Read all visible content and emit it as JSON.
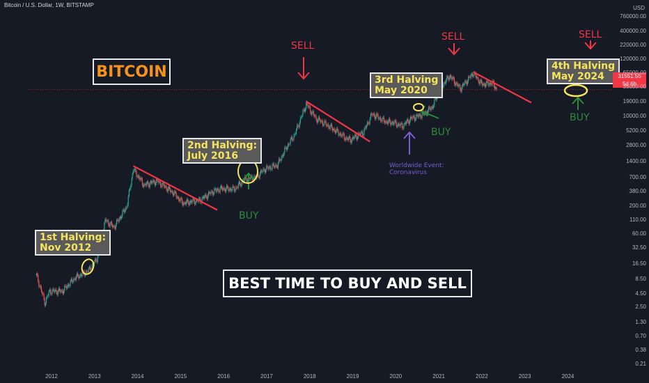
{
  "header": {
    "title": "Bitcoin / U.S. Dollar, 1W, BITSTAMP"
  },
  "y_axis": {
    "currency": "USD",
    "ticks": [
      "760000.00",
      "400000.00",
      "220000.00",
      "120000.00",
      "65000.00",
      "35000.00",
      "19000.00",
      "10000.00",
      "5200.00",
      "2800.00",
      "1400.00",
      "700.00",
      "380.00",
      "200.00",
      "110.00",
      "60.00",
      "32.50",
      "16.50",
      "8.50",
      "4.50",
      "2.50",
      "1.30",
      "0.70",
      "0.38",
      "0.21"
    ],
    "current_price": "31551.55",
    "countdown": "5d 6h"
  },
  "x_axis": {
    "ticks": [
      "2012",
      "2013",
      "2014",
      "2015",
      "2016",
      "2017",
      "2018",
      "2019",
      "2020",
      "2021",
      "2022",
      "2023",
      "2024"
    ]
  },
  "annotations": {
    "bitcoin_label": "BITCOIN",
    "best_time": "BEST TIME TO BUY AND SELL",
    "halving1": [
      "1st Halving:",
      "Nov 2012"
    ],
    "halving2": [
      "2nd Halving:",
      "July 2016"
    ],
    "halving3": [
      "3rd Halving",
      "May 2020"
    ],
    "halving4": [
      "4th Halving",
      "May 2024"
    ],
    "sell": "SELL",
    "buy": "BUY",
    "event": [
      "Worldwide Event:",
      "Coronavirus"
    ]
  },
  "colors": {
    "background": "#161a25",
    "up": "#26a69a",
    "down": "#ef5350",
    "sell": "#f23645",
    "buy": "#2e8b3a",
    "halving_text": "#f6e45c",
    "bitcoin": "#f7931a",
    "event": "#7b5cd6"
  },
  "chart_data": {
    "type": "line",
    "title": "Bitcoin / U.S. Dollar, 1W, BITSTAMP",
    "y_scale": "log",
    "ylim": [
      0.18,
      900000
    ],
    "x_range": [
      2011.5,
      2024.9
    ],
    "series": [
      {
        "name": "BTCUSD",
        "x": [
          2011.7,
          2011.9,
          2012.0,
          2012.3,
          2012.6,
          2012.9,
          2013.1,
          2013.3,
          2013.5,
          2013.8,
          2013.95,
          2014.2,
          2014.5,
          2014.9,
          2015.1,
          2015.5,
          2015.8,
          2016.0,
          2016.3,
          2016.55,
          2016.8,
          2017.0,
          2017.3,
          2017.5,
          2017.7,
          2017.97,
          2018.2,
          2018.5,
          2018.9,
          2019.0,
          2019.3,
          2019.5,
          2019.8,
          2020.0,
          2020.2,
          2020.4,
          2020.7,
          2020.9,
          2021.1,
          2021.3,
          2021.55,
          2021.85,
          2022.05,
          2022.3,
          2022.4
        ],
        "y": [
          10,
          3,
          5,
          5,
          9,
          12,
          20,
          110,
          80,
          200,
          1000,
          500,
          600,
          350,
          230,
          260,
          380,
          430,
          420,
          650,
          700,
          1000,
          1200,
          2500,
          4500,
          17000,
          9000,
          6500,
          3800,
          3600,
          5000,
          11000,
          8000,
          7500,
          6500,
          9000,
          11000,
          15000,
          35000,
          58000,
          33000,
          65000,
          40000,
          42000,
          31551.55
        ]
      }
    ],
    "annotations": [
      {
        "text": "1st Halving: Nov 2012",
        "x": 2012.9
      },
      {
        "text": "2nd Halving: July 2016",
        "x": 2016.55
      },
      {
        "text": "3rd Halving May 2020",
        "x": 2020.4
      },
      {
        "text": "4th Halving May 2024",
        "x": 2024.35
      },
      {
        "text": "SELL",
        "x": 2017.9,
        "y": 60000
      },
      {
        "text": "SELL",
        "x": 2021.2,
        "y": 180000
      },
      {
        "text": "SELL",
        "x": 2024.3,
        "y": 230000
      },
      {
        "text": "BUY",
        "x": 2016.6,
        "y": 110
      },
      {
        "text": "BUY",
        "x": 2020.95,
        "y": 4500
      },
      {
        "text": "BUY",
        "x": 2024.35,
        "y": 5500
      },
      {
        "text": "Worldwide Event: Coronavirus",
        "x": 2020.2,
        "y": 1000
      }
    ],
    "downtrends": [
      {
        "x": [
          2013.95,
          2015.9
        ],
        "y": [
          1150,
          170
        ]
      },
      {
        "x": [
          2017.97,
          2019.45
        ],
        "y": [
          19000,
          3300
        ]
      },
      {
        "x": [
          2021.85,
          2023.2
        ],
        "y": [
          68000,
          18000
        ]
      }
    ],
    "grid": false,
    "legend": "none"
  }
}
